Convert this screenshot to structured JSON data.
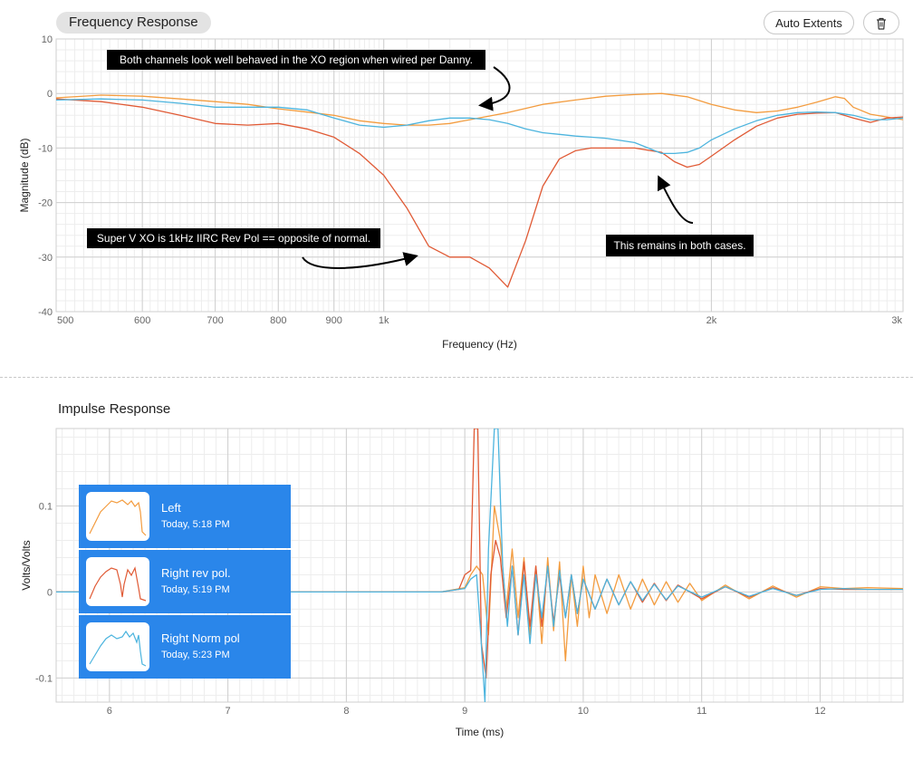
{
  "frequency_panel": {
    "title": "Frequency Response",
    "auto_extents_label": "Auto Extents",
    "trash_icon": "trash-icon"
  },
  "impulse_panel": {
    "title": "Impulse Response"
  },
  "legend": [
    {
      "name": "Left",
      "time": "Today, 5:18 PM",
      "color": "#f39c3f"
    },
    {
      "name": "Right rev pol.",
      "time": "Today, 5:19 PM",
      "color": "#e05a35"
    },
    {
      "name": "Right Norm pol",
      "time": "Today, 5:23 PM",
      "color": "#4cb4de"
    }
  ],
  "annotations": [
    "Both channels look well behaved in the XO region when wired per Danny.",
    "Super V XO is 1kHz IIRC Rev Pol == opposite of normal.",
    "This remains in both cases."
  ],
  "chart_data": [
    {
      "type": "line",
      "title": "Frequency Response",
      "xlabel": "Frequency (Hz)",
      "ylabel": "Magnitude (dB)",
      "xscale": "log",
      "xlim": [
        500,
        3000
      ],
      "ylim": [
        -40,
        10
      ],
      "xticks": [
        500,
        600,
        700,
        800,
        900,
        1000,
        2000,
        3000
      ],
      "xtick_labels": [
        "500",
        "600",
        "700",
        "800",
        "900",
        "1k",
        "2k",
        "3k"
      ],
      "yticks": [
        10,
        0,
        -10,
        -20,
        -30,
        -40
      ],
      "ytick_labels": [
        "10",
        "0",
        "-10",
        "-20",
        "-30",
        "-40"
      ],
      "grid": true,
      "series": [
        {
          "name": "Left",
          "color": "#f39c3f",
          "x": [
            500,
            550,
            600,
            650,
            700,
            750,
            800,
            850,
            900,
            950,
            1000,
            1050,
            1100,
            1150,
            1200,
            1300,
            1400,
            1500,
            1600,
            1700,
            1800,
            1900,
            2000,
            2100,
            2200,
            2300,
            2400,
            2500,
            2600,
            2650,
            2700,
            2800,
            2900,
            3000
          ],
          "y": [
            -0.8,
            -0.3,
            -0.5,
            -1.0,
            -1.5,
            -2.0,
            -2.8,
            -3.4,
            -4.0,
            -5.0,
            -5.5,
            -5.8,
            -5.8,
            -5.5,
            -4.8,
            -3.5,
            -2.0,
            -1.2,
            -0.5,
            -0.2,
            0.0,
            -0.6,
            -2.0,
            -3.0,
            -3.5,
            -3.2,
            -2.5,
            -1.6,
            -0.6,
            -0.9,
            -2.5,
            -3.8,
            -4.3,
            -4.8
          ]
        },
        {
          "name": "Right rev pol.",
          "color": "#e05a35",
          "x": [
            500,
            550,
            600,
            650,
            700,
            750,
            800,
            850,
            900,
            950,
            1000,
            1050,
            1100,
            1150,
            1200,
            1250,
            1300,
            1350,
            1400,
            1450,
            1500,
            1550,
            1600,
            1700,
            1800,
            1850,
            1900,
            1950,
            2000,
            2100,
            2200,
            2300,
            2400,
            2500,
            2600,
            2700,
            2800,
            2900,
            3000
          ],
          "y": [
            -1.0,
            -1.5,
            -2.5,
            -4.0,
            -5.5,
            -5.8,
            -5.5,
            -6.5,
            -8.0,
            -11.0,
            -15.0,
            -21.0,
            -28.0,
            -30.0,
            -30.0,
            -32.0,
            -35.5,
            -27.0,
            -17.0,
            -12.0,
            -10.5,
            -10.0,
            -10.0,
            -10.0,
            -10.8,
            -12.5,
            -13.5,
            -13.0,
            -11.5,
            -8.5,
            -6.0,
            -4.5,
            -3.8,
            -3.6,
            -3.5,
            -4.5,
            -5.3,
            -4.5,
            -4.3
          ]
        },
        {
          "name": "Right Norm pol",
          "color": "#4cb4de",
          "x": [
            500,
            550,
            600,
            650,
            700,
            750,
            800,
            850,
            900,
            950,
            1000,
            1050,
            1100,
            1150,
            1200,
            1250,
            1300,
            1350,
            1400,
            1450,
            1500,
            1550,
            1600,
            1650,
            1700,
            1750,
            1800,
            1850,
            1900,
            1950,
            2000,
            2100,
            2200,
            2300,
            2400,
            2500,
            2600,
            2700,
            2800,
            2900,
            3000
          ],
          "y": [
            -1.2,
            -1.0,
            -1.2,
            -1.8,
            -2.5,
            -2.5,
            -2.5,
            -3.0,
            -4.5,
            -5.8,
            -6.2,
            -5.8,
            -5.0,
            -4.5,
            -4.5,
            -4.8,
            -5.5,
            -6.5,
            -7.2,
            -7.5,
            -7.8,
            -8.0,
            -8.2,
            -8.6,
            -9.0,
            -10.0,
            -11.0,
            -11.0,
            -10.8,
            -10.0,
            -8.5,
            -6.5,
            -5.0,
            -4.0,
            -3.5,
            -3.4,
            -3.5,
            -4.0,
            -4.8,
            -4.8,
            -4.5
          ]
        }
      ]
    },
    {
      "type": "line",
      "title": "Impulse Response",
      "xlabel": "Time (ms)",
      "ylabel": "Volts/Volts",
      "xlim": [
        5.55,
        12.7
      ],
      "ylim": [
        -0.128,
        0.19
      ],
      "xticks": [
        6,
        7,
        8,
        9,
        10,
        11,
        12
      ],
      "xtick_labels": [
        "6",
        "7",
        "8",
        "9",
        "10",
        "11",
        "12"
      ],
      "yticks": [
        0.1,
        0,
        -0.1
      ],
      "ytick_labels": [
        "0.1",
        "0",
        "-0.1"
      ],
      "grid": true,
      "series": [
        {
          "name": "Left",
          "color": "#f39c3f",
          "x": [
            5.55,
            8.8,
            9.0,
            9.05,
            9.1,
            9.15,
            9.2,
            9.25,
            9.3,
            9.35,
            9.4,
            9.45,
            9.5,
            9.55,
            9.6,
            9.65,
            9.7,
            9.75,
            9.8,
            9.85,
            9.9,
            9.95,
            10.0,
            10.05,
            10.1,
            10.2,
            10.3,
            10.4,
            10.5,
            10.6,
            10.7,
            10.8,
            10.9,
            11.0,
            11.2,
            11.4,
            11.6,
            11.8,
            12.0,
            12.2,
            12.4,
            12.7
          ],
          "y": [
            0,
            0,
            0.005,
            0.02,
            0.03,
            0.02,
            -0.05,
            0.1,
            0.06,
            -0.02,
            0.05,
            -0.03,
            0.04,
            -0.05,
            0.03,
            -0.06,
            0.04,
            -0.045,
            0.035,
            -0.08,
            0.02,
            -0.04,
            0.03,
            -0.03,
            0.02,
            -0.025,
            0.02,
            -0.02,
            0.015,
            -0.015,
            0.012,
            -0.012,
            0.01,
            -0.01,
            0.008,
            -0.008,
            0.007,
            -0.006,
            0.006,
            0.004,
            0.005,
            0.004
          ]
        },
        {
          "name": "Right rev pol.",
          "color": "#e05a35",
          "x": [
            5.55,
            8.8,
            8.95,
            9.0,
            9.05,
            9.08,
            9.11,
            9.14,
            9.18,
            9.22,
            9.26,
            9.3,
            9.35,
            9.4,
            9.45,
            9.5,
            9.55,
            9.6,
            9.65,
            9.7,
            9.75,
            9.8,
            9.85,
            9.9,
            9.95,
            10.0,
            10.1,
            10.2,
            10.3,
            10.4,
            10.5,
            10.6,
            10.7,
            10.8,
            11.0,
            11.2,
            11.4,
            11.6,
            11.8,
            12.0,
            12.2,
            12.4,
            12.7
          ],
          "y": [
            0,
            0,
            0.003,
            0.02,
            0.025,
            0.19,
            0.19,
            -0.06,
            -0.1,
            0.02,
            0.06,
            0.04,
            -0.03,
            0.03,
            -0.05,
            0.035,
            -0.04,
            0.03,
            -0.04,
            0.03,
            -0.035,
            0.02,
            -0.03,
            0.02,
            -0.025,
            0.015,
            -0.02,
            0.015,
            -0.015,
            0.012,
            -0.012,
            0.01,
            -0.01,
            0.008,
            -0.008,
            0.006,
            -0.006,
            0.005,
            -0.004,
            0.004,
            0.003,
            0.003,
            0.003
          ]
        },
        {
          "name": "Right Norm pol",
          "color": "#4cb4de",
          "x": [
            5.55,
            8.8,
            9.0,
            9.05,
            9.1,
            9.13,
            9.17,
            9.2,
            9.25,
            9.28,
            9.32,
            9.36,
            9.4,
            9.45,
            9.5,
            9.55,
            9.6,
            9.65,
            9.7,
            9.75,
            9.8,
            9.85,
            9.9,
            9.95,
            10.0,
            10.1,
            10.2,
            10.3,
            10.4,
            10.5,
            10.6,
            10.7,
            10.8,
            11.0,
            11.2,
            11.4,
            11.6,
            11.8,
            12.0,
            12.2,
            12.4,
            12.7
          ],
          "y": [
            0,
            0,
            0.004,
            0.015,
            0.02,
            -0.04,
            -0.128,
            0.05,
            0.19,
            0.19,
            0.03,
            -0.04,
            0.03,
            -0.05,
            0.02,
            -0.06,
            0.02,
            -0.03,
            0.03,
            -0.04,
            0.025,
            -0.03,
            0.02,
            -0.025,
            0.015,
            -0.02,
            0.015,
            -0.015,
            0.012,
            -0.01,
            0.009,
            -0.009,
            0.007,
            -0.006,
            0.006,
            -0.005,
            0.004,
            -0.004,
            0.003,
            0.004,
            0.003,
            0.003
          ]
        }
      ]
    }
  ]
}
